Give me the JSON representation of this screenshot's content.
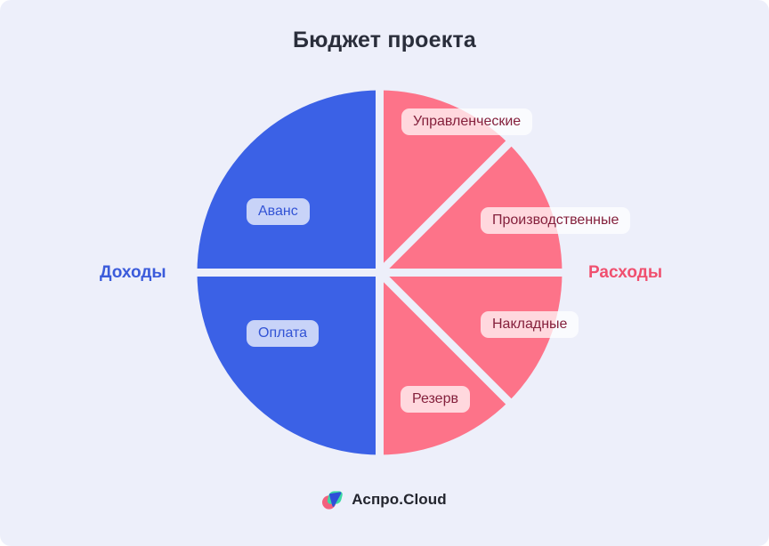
{
  "title": "Бюджет проекта",
  "chart_data": {
    "type": "pie",
    "title": "Бюджет проекта",
    "legend_position": "sides",
    "groups": [
      {
        "name": "Доходы",
        "color": "#3B61E6",
        "side": "left"
      },
      {
        "name": "Расходы",
        "color": "#FD7389",
        "side": "right"
      }
    ],
    "segments": [
      {
        "label": "Аванс",
        "group": "Доходы",
        "start_angle": 270,
        "end_angle": 360,
        "value_pct": 25
      },
      {
        "label": "Управленческие",
        "group": "Расходы",
        "start_angle": 0,
        "end_angle": 45,
        "value_pct": 12.5
      },
      {
        "label": "Производственные",
        "group": "Расходы",
        "start_angle": 45,
        "end_angle": 90,
        "value_pct": 12.5
      },
      {
        "label": "Накладные",
        "group": "Расходы",
        "start_angle": 90,
        "end_angle": 135,
        "value_pct": 12.5
      },
      {
        "label": "Резерв",
        "group": "Расходы",
        "start_angle": 135,
        "end_angle": 180,
        "value_pct": 12.5
      },
      {
        "label": "Оплата",
        "group": "Доходы",
        "start_angle": 180,
        "end_angle": 270,
        "value_pct": 25
      }
    ]
  },
  "logo": {
    "text": "Аспро.Cloud",
    "icon": "aspro-cloud-logo"
  },
  "colors": {
    "card_background": "#EDEFFA",
    "income_slice": "#3B61E6",
    "expense_slice": "#FD7389",
    "income_pill_text": "#3253D5",
    "expense_pill_text": "#84203C",
    "income_side_label": "#3B5BDB",
    "expense_side_label": "#F0506F",
    "title_text": "#2A2E3B"
  }
}
